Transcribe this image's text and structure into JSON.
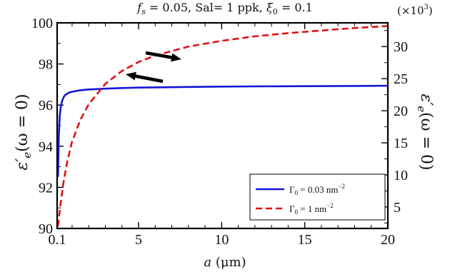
{
  "chart_data": {
    "type": "line",
    "title": "f_s = 0.05, Sal= 1 ppk, ξ_0 = 0.1",
    "title_parts": {
      "f": "f",
      "s": "s",
      "eq1": " = 0.05, Sal= 1 ppk, ",
      "xi": "ξ",
      "zero": "0",
      "eq2": " = 0.1"
    },
    "xlabel": "a (μm)",
    "xlabel_parts": {
      "a": "a",
      "rest": " (μm)"
    },
    "ylabel_left": "ε′e(ω = 0)",
    "ylabel_right": "ε′e(ω = 0)",
    "ylabel_parts": {
      "eps": "ε′",
      "sub": "e",
      "rest": "(ω = 0)"
    },
    "right_axis_multiplier": "(×10³)",
    "multiplier_parts": {
      "base": "(×10",
      "exp": "3",
      "close": ")"
    },
    "xlim": [
      0.1,
      20
    ],
    "ylim_left": [
      90,
      100
    ],
    "ylim_right": [
      1.65,
      33.7
    ],
    "x_ticks": [
      0.1,
      5,
      10,
      15,
      20
    ],
    "x_tick_labels": [
      "0.1",
      "5",
      "10",
      "15",
      "20"
    ],
    "y_left_ticks": [
      90,
      92,
      94,
      96,
      98,
      100
    ],
    "y_left_tick_labels": [
      "90",
      "92",
      "94",
      "96",
      "98",
      "100"
    ],
    "y_right_ticks": [
      5,
      10,
      15,
      20,
      25,
      30
    ],
    "y_right_tick_labels": [
      "5",
      "10",
      "15",
      "20",
      "25",
      "30"
    ],
    "grid": false,
    "legend_position": "bottom-right",
    "series": [
      {
        "name": "Γ0 = 0.03 nm⁻²",
        "axis": "left",
        "color": "#1515d6",
        "dash": "solid",
        "x": [
          0.15,
          0.2,
          0.25,
          0.3,
          0.35,
          0.4,
          0.5,
          0.6,
          0.7,
          0.8,
          1.0,
          1.2,
          1.5,
          2,
          3,
          4,
          5,
          6,
          8,
          10,
          12,
          15,
          18,
          20
        ],
        "y": [
          92.5,
          94.5,
          95.4,
          95.8,
          96.05,
          96.2,
          96.4,
          96.5,
          96.55,
          96.6,
          96.65,
          96.68,
          96.72,
          96.76,
          96.8,
          96.83,
          96.85,
          96.86,
          96.88,
          96.9,
          96.91,
          96.92,
          96.93,
          96.94
        ]
      },
      {
        "name": "Γ0 = 1 nm⁻²",
        "axis": "right",
        "color": "#e01010",
        "dash": "dashed",
        "x": [
          0.15,
          0.2,
          0.3,
          0.5,
          0.7,
          1.0,
          1.5,
          2,
          3,
          4,
          5,
          6,
          8,
          10,
          12,
          14,
          16,
          18,
          20
        ],
        "y": [
          2.0,
          3.2,
          5.4,
          9.1,
          12.0,
          15.2,
          18.6,
          21.0,
          24.2,
          26.2,
          27.6,
          28.6,
          30.0,
          30.9,
          31.6,
          32.1,
          32.5,
          32.9,
          33.2
        ]
      }
    ],
    "annotations": [
      {
        "type": "arrow",
        "direction": "right",
        "meaning": "dashed curve reads on right axis"
      },
      {
        "type": "arrow",
        "direction": "left",
        "meaning": "solid curve reads on left axis"
      }
    ],
    "legend_parts": [
      {
        "gamma": "Γ",
        "sub": "0",
        "eq": " = 0.03 nm",
        "exp": "−2"
      },
      {
        "gamma": "Γ",
        "sub": "0",
        "eq": " = 1 nm",
        "exp": "−2"
      }
    ]
  }
}
